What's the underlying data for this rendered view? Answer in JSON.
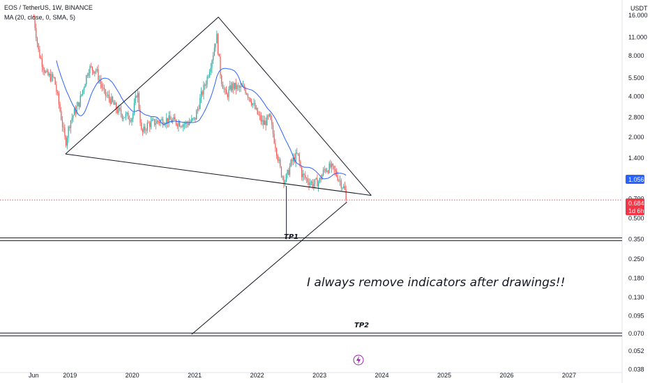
{
  "header": {
    "symbol_line": "EOS / TetherUS, 1W, BINANCE",
    "indicator_line": "MA (20, close, 0, SMA, 5)"
  },
  "chart_data": {
    "type": "candlestick",
    "currency_label": "USDT",
    "y_scale": "log",
    "y_ticks": [
      "16.000",
      "11.000",
      "8.000",
      "5.500",
      "4.000",
      "2.800",
      "2.000",
      "1.400",
      "1.000",
      "0.700",
      "0.500",
      "0.350",
      "0.250",
      "0.180",
      "0.130",
      "0.095",
      "0.070",
      "0.052",
      "0.038"
    ],
    "ylim": [
      0.036,
      18
    ],
    "x_ticks": [
      {
        "label": "Jun",
        "x": 2018.42
      },
      {
        "label": "2019",
        "x": 2019.0
      },
      {
        "label": "2020",
        "x": 2020.0
      },
      {
        "label": "2021",
        "x": 2021.0
      },
      {
        "label": "2022",
        "x": 2022.0
      },
      {
        "label": "2023",
        "x": 2023.0
      },
      {
        "label": "2024",
        "x": 2024.0
      },
      {
        "label": "2025",
        "x": 2025.0
      },
      {
        "label": "2026",
        "x": 2026.0
      },
      {
        "label": "2027",
        "x": 2027.0
      }
    ],
    "xlim": [
      2017.88,
      2027.85
    ],
    "price_path": [
      [
        2018.42,
        15.5
      ],
      [
        2018.5,
        8.5
      ],
      [
        2018.62,
        5.8
      ],
      [
        2018.75,
        5.4
      ],
      [
        2018.85,
        3.0
      ],
      [
        2018.93,
        1.8
      ],
      [
        2019.0,
        2.6
      ],
      [
        2019.15,
        3.6
      ],
      [
        2019.3,
        6.5
      ],
      [
        2019.42,
        6.3
      ],
      [
        2019.55,
        4.2
      ],
      [
        2019.65,
        3.8
      ],
      [
        2019.75,
        3.2
      ],
      [
        2019.85,
        2.9
      ],
      [
        2020.0,
        2.8
      ],
      [
        2020.08,
        4.5
      ],
      [
        2020.15,
        2.1
      ],
      [
        2020.25,
        2.5
      ],
      [
        2020.4,
        2.6
      ],
      [
        2020.55,
        2.7
      ],
      [
        2020.7,
        2.6
      ],
      [
        2020.85,
        2.5
      ],
      [
        2021.0,
        2.7
      ],
      [
        2021.1,
        4.0
      ],
      [
        2021.2,
        5.5
      ],
      [
        2021.3,
        8.5
      ],
      [
        2021.35,
        11.5
      ],
      [
        2021.42,
        5.5
      ],
      [
        2021.5,
        4.0
      ],
      [
        2021.6,
        4.8
      ],
      [
        2021.7,
        4.6
      ],
      [
        2021.8,
        4.6
      ],
      [
        2021.9,
        3.8
      ],
      [
        2022.0,
        3.0
      ],
      [
        2022.1,
        2.5
      ],
      [
        2022.2,
        2.8
      ],
      [
        2022.3,
        1.7
      ],
      [
        2022.38,
        1.1
      ],
      [
        2022.45,
        0.95
      ],
      [
        2022.55,
        1.3
      ],
      [
        2022.65,
        1.5
      ],
      [
        2022.72,
        1.05
      ],
      [
        2022.82,
        0.95
      ],
      [
        2022.9,
        0.9
      ],
      [
        2023.0,
        0.95
      ],
      [
        2023.08,
        1.15
      ],
      [
        2023.18,
        1.2
      ],
      [
        2023.25,
        1.1
      ],
      [
        2023.33,
        0.95
      ],
      [
        2023.4,
        0.82
      ],
      [
        2023.44,
        0.684
      ]
    ],
    "ma_label": "MA (20, close, 0, SMA, 5)",
    "ma_last_value": "1.056",
    "last_price": "0.684",
    "countdown": "1d 6h",
    "drawings": {
      "upper_line": [
        [
          2018.93,
          1.5
        ],
        [
          2021.38,
          15.5
        ],
        [
          2023.83,
          0.74
        ]
      ],
      "lower_line": [
        [
          2018.93,
          1.5
        ],
        [
          2023.83,
          0.74
        ]
      ],
      "measure_vertical": {
        "x": 2022.47,
        "from": 0.87,
        "to": 0.35
      },
      "target_line": [
        [
          2020.95,
          0.069
        ],
        [
          2023.44,
          0.66
        ]
      ],
      "tp1": {
        "label": "TP1",
        "level": 0.35
      },
      "tp2": {
        "label": "TP2",
        "level": 0.069
      }
    },
    "annotation": "I always remove indicators after drawings!!",
    "colors": {
      "up": "#26a69a",
      "down": "#ef5350",
      "ma": "#2962ff",
      "drawing": "#131722",
      "last_price_tag": "#f23645",
      "ma_tag": "#2962ff"
    }
  },
  "icons": {
    "bottom_marker": "lightning-icon"
  }
}
